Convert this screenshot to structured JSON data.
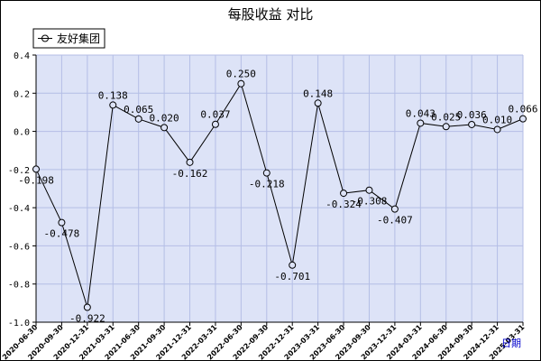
{
  "chart_data": {
    "type": "line",
    "title": "每股收益  对比",
    "xlabel": "日期",
    "ylabel": "",
    "ylim": [
      -1.0,
      0.4
    ],
    "yticks": [
      "0.4",
      "0.2",
      "0.0",
      "-0.2",
      "-0.4",
      "-0.6",
      "-0.8",
      "-1.0"
    ],
    "ytick_values": [
      0.4,
      0.2,
      0.0,
      -0.2,
      -0.4,
      -0.6,
      -0.8,
      -1.0
    ],
    "grid": true,
    "legend_position": "top-left",
    "categories": [
      "2020-06-30",
      "2020-09-30",
      "2020-12-31",
      "2021-03-31",
      "2021-06-30",
      "2021-09-30",
      "2021-12-31",
      "2022-03-31",
      "2022-06-30",
      "2022-09-30",
      "2022-12-31",
      "2023-03-31",
      "2023-06-30",
      "2023-09-30",
      "2023-12-31",
      "2024-03-31",
      "2024-06-30",
      "2024-09-30",
      "2024-12-31",
      "2025-03-31"
    ],
    "series": [
      {
        "name": "友好集团",
        "values": [
          -0.198,
          -0.478,
          -0.922,
          0.138,
          0.065,
          0.02,
          -0.162,
          0.037,
          0.25,
          -0.218,
          -0.701,
          0.148,
          -0.324,
          -0.308,
          -0.407,
          0.043,
          0.025,
          0.036,
          0.01,
          0.066
        ],
        "labels": [
          "-0.198",
          "-0.478",
          "-0.922",
          "0.138",
          "0.065",
          "0.020",
          "-0.162",
          "0.037",
          "0.250",
          "-0.218",
          "-0.701",
          "0.148",
          "-0.324",
          "-0.308",
          "-0.407",
          "0.043",
          "0.025",
          "0.036",
          "0.010",
          "0.066"
        ]
      }
    ]
  },
  "colors": {
    "plot_bg": "#dde3f7",
    "grid": "#b4bee6",
    "line": "#000000",
    "text": "#000000",
    "xlabel": "#0000cc"
  }
}
